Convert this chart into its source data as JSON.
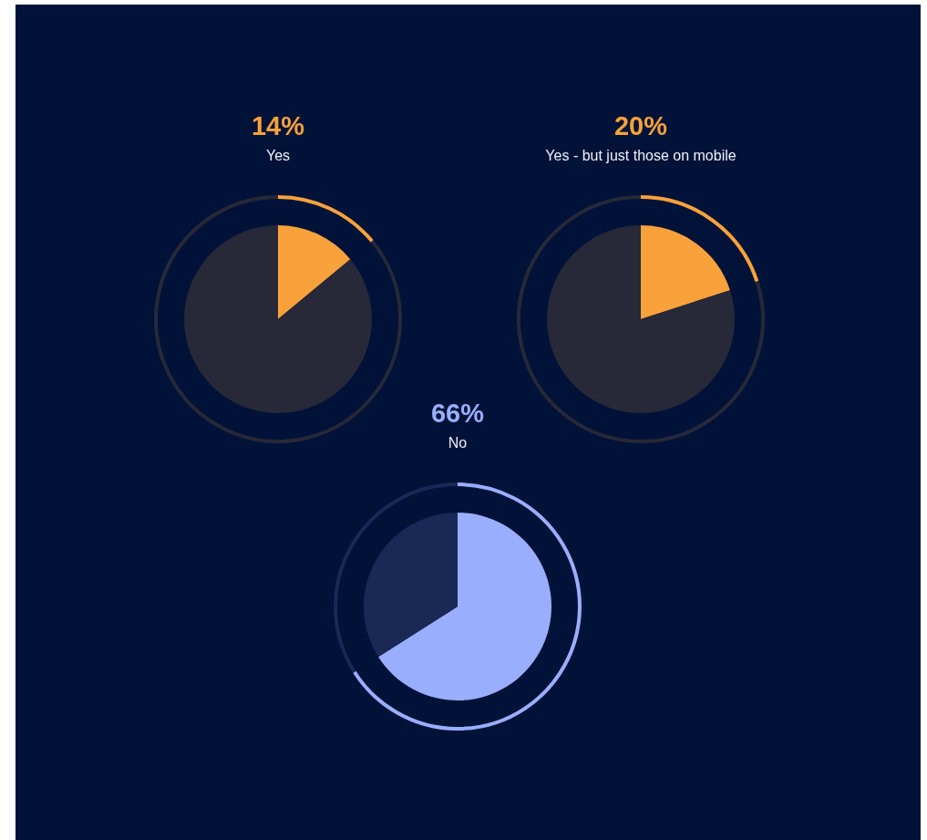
{
  "chart_data": [
    {
      "type": "pie",
      "categories": [
        "Yes",
        null
      ],
      "values": [
        14,
        86
      ],
      "colors": [
        "#f9a23b",
        "#272838"
      ],
      "value_labels": [
        "14%",
        null
      ]
    },
    {
      "type": "pie",
      "categories": [
        "Yes - but just those on mobile",
        null
      ],
      "values": [
        20,
        80
      ],
      "colors": [
        "#f9a23b",
        "#272838"
      ],
      "value_labels": [
        "20%",
        null
      ]
    },
    {
      "type": "pie",
      "categories": [
        "No",
        null
      ],
      "values": [
        66,
        34
      ],
      "colors": [
        "#9aaeff",
        "#1a2856"
      ],
      "value_labels": [
        "66%",
        null
      ]
    }
  ]
}
